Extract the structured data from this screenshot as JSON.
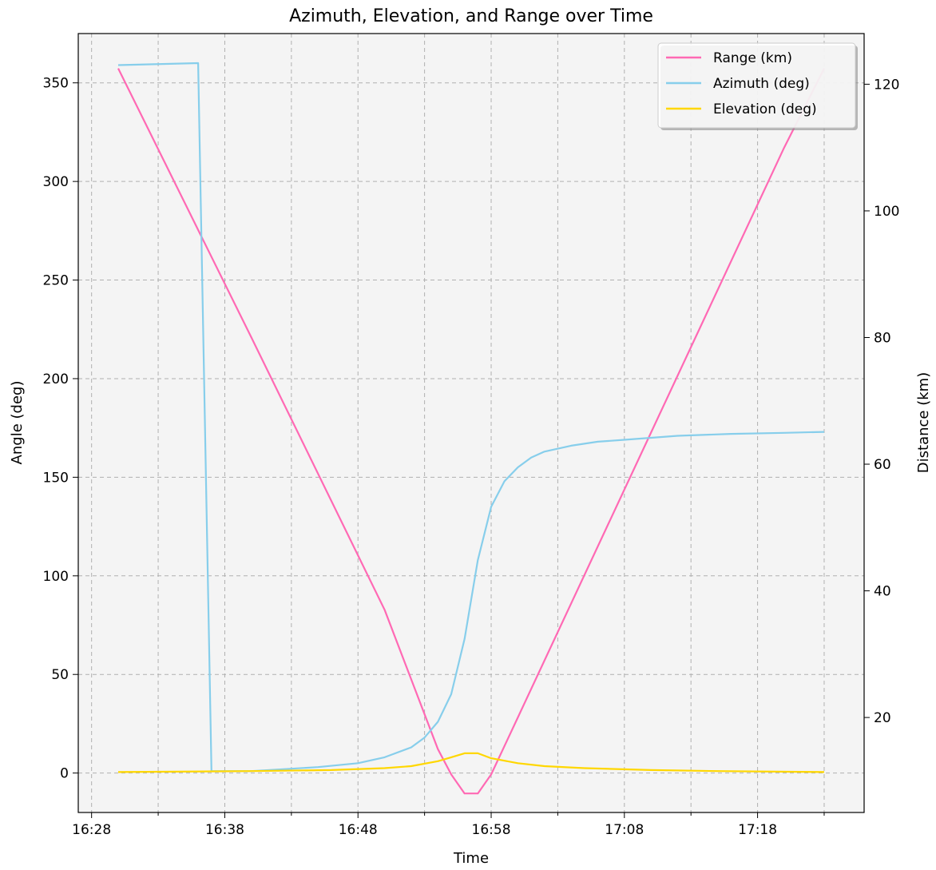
{
  "chart_data": {
    "type": "line",
    "title": "Azimuth, Elevation, and Range over Time",
    "xlabel": "Time",
    "ylabel_left": "Angle (deg)",
    "ylabel_right": "Distance (km)",
    "x_range_minutes": [
      "16:27",
      "17:26"
    ],
    "ylim_left": [
      -20,
      375
    ],
    "ylim_right": [
      5,
      128
    ],
    "x_ticks_major": [
      "16:28",
      "16:38",
      "16:48",
      "16:58",
      "17:08",
      "17:18"
    ],
    "y_ticks_left": [
      0,
      50,
      100,
      150,
      200,
      250,
      300,
      350
    ],
    "y_ticks_right": [
      20,
      40,
      60,
      80,
      100,
      120
    ],
    "grid": true,
    "legend_position": "upper right",
    "colors": {
      "range": "#ff69b4",
      "azimuth": "#87ceeb",
      "elevation": "#ffd700",
      "plot_bg": "#f4f4f4"
    },
    "series": [
      {
        "name": "Range (km)",
        "axis": "right",
        "color": "#ff69b4",
        "points": [
          [
            "16:30",
            122.5
          ],
          [
            "16:40",
            80
          ],
          [
            "16:50",
            37
          ],
          [
            "16:54",
            15
          ],
          [
            "16:55",
            11
          ],
          [
            "16:56",
            8
          ],
          [
            "16:57",
            8
          ],
          [
            "16:58",
            11
          ],
          [
            "17:00",
            20
          ],
          [
            "17:10",
            65
          ],
          [
            "17:20",
            110
          ],
          [
            "17:23",
            122.5
          ]
        ]
      },
      {
        "name": "Azimuth (deg)",
        "axis": "left",
        "color": "#87ceeb",
        "points": [
          [
            "16:30",
            359
          ],
          [
            "16:36",
            360
          ],
          [
            "16:37",
            1
          ],
          [
            "16:40",
            1
          ],
          [
            "16:45",
            3
          ],
          [
            "16:48",
            5
          ],
          [
            "16:50",
            8
          ],
          [
            "16:52",
            13
          ],
          [
            "16:53",
            18
          ],
          [
            "16:54",
            26
          ],
          [
            "16:55",
            40
          ],
          [
            "16:56",
            68
          ],
          [
            "16:57",
            108
          ],
          [
            "16:58",
            135
          ],
          [
            "16:59",
            148
          ],
          [
            "17:00",
            155
          ],
          [
            "17:01",
            160
          ],
          [
            "17:02",
            163
          ],
          [
            "17:04",
            166
          ],
          [
            "17:06",
            168
          ],
          [
            "17:08",
            169
          ],
          [
            "17:12",
            171
          ],
          [
            "17:16",
            172
          ],
          [
            "17:20",
            172.5
          ],
          [
            "17:23",
            173
          ]
        ]
      },
      {
        "name": "Elevation (deg)",
        "axis": "left",
        "color": "#ffd700",
        "points": [
          [
            "16:30",
            0.5
          ],
          [
            "16:40",
            1
          ],
          [
            "16:46",
            1.5
          ],
          [
            "16:50",
            2.5
          ],
          [
            "16:52",
            3.5
          ],
          [
            "16:54",
            6
          ],
          [
            "16:55",
            8
          ],
          [
            "16:56",
            10
          ],
          [
            "16:57",
            10
          ],
          [
            "16:58",
            7.5
          ],
          [
            "17:00",
            5
          ],
          [
            "17:02",
            3.5
          ],
          [
            "17:05",
            2.5
          ],
          [
            "17:10",
            1.5
          ],
          [
            "17:15",
            1
          ],
          [
            "17:23",
            0.5
          ]
        ]
      }
    ]
  }
}
